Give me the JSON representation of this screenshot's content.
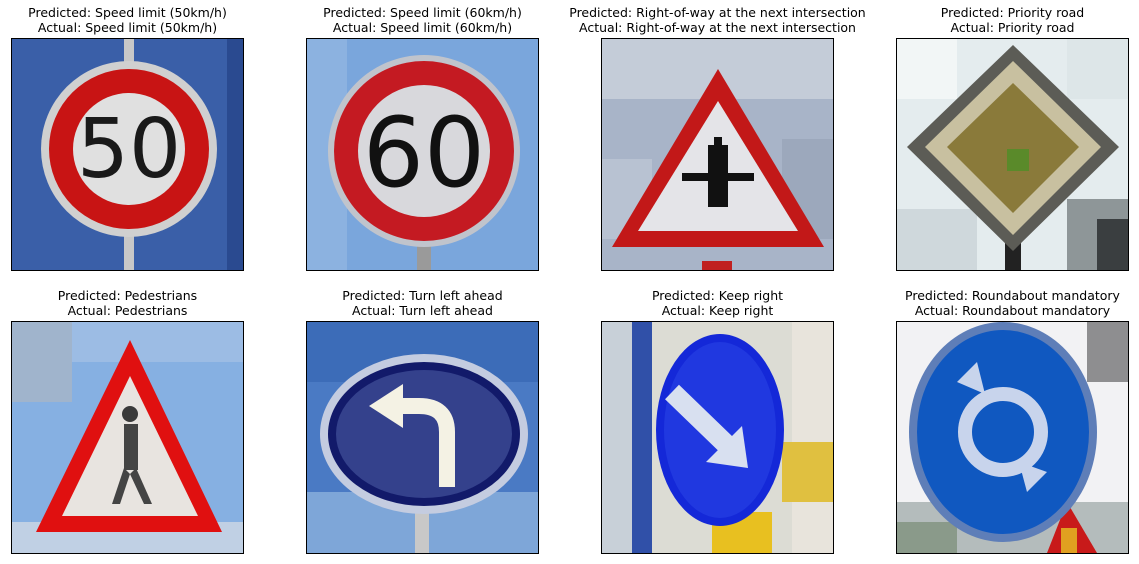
{
  "panels": [
    {
      "predicted": "Predicted: Speed limit (50km/h)",
      "actual": "Actual: Speed limit (50km/h)",
      "sign_text": "50"
    },
    {
      "predicted": "Predicted: Speed limit (60km/h)",
      "actual": "Actual: Speed limit (60km/h)",
      "sign_text": "60"
    },
    {
      "predicted": "Predicted: Right-of-way at the next intersection",
      "actual": "Actual: Right-of-way at the next intersection"
    },
    {
      "predicted": "Predicted: Priority road",
      "actual": "Actual: Priority road"
    },
    {
      "predicted": "Predicted: Pedestrians",
      "actual": "Actual: Pedestrians"
    },
    {
      "predicted": "Predicted: Turn left ahead",
      "actual": "Actual: Turn left ahead"
    },
    {
      "predicted": "Predicted: Keep right",
      "actual": "Actual: Keep right"
    },
    {
      "predicted": "Predicted: Roundabout mandatory",
      "actual": "Actual: Roundabout mandatory"
    }
  ]
}
